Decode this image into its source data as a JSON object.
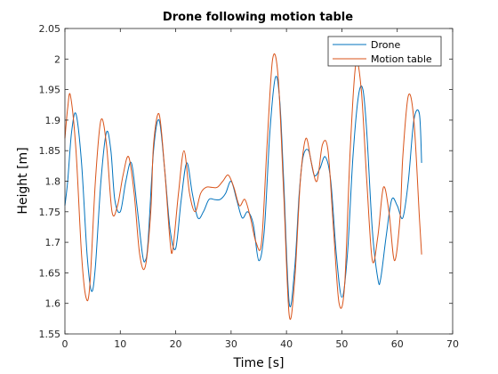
{
  "chart_data": {
    "type": "line",
    "title": "Drone following motion table",
    "xlabel": "Time [s]",
    "ylabel": "Height [m]",
    "xlim": [
      0,
      70
    ],
    "ylim": [
      1.55,
      2.05
    ],
    "xticks": [
      0,
      10,
      20,
      30,
      40,
      50,
      60,
      70
    ],
    "xtick_labels": [
      "0",
      "10",
      "20",
      "30",
      "40",
      "50",
      "60",
      "70"
    ],
    "yticks": [
      1.55,
      1.6,
      1.65,
      1.7,
      1.75,
      1.8,
      1.85,
      1.9,
      1.95,
      2.0,
      2.05
    ],
    "ytick_labels": [
      "1.55",
      "1.6",
      "1.65",
      "1.7",
      "1.75",
      "1.8",
      "1.85",
      "1.9",
      "1.95",
      "2",
      "2.05"
    ],
    "grid": false,
    "legend_location": "top-right",
    "series": [
      {
        "name": "Drone",
        "color": "#0072BD",
        "x": [
          0,
          0.5,
          1.2,
          2.0,
          3.0,
          4.0,
          4.8,
          5.5,
          6.5,
          7.5,
          8.3,
          9.0,
          10.0,
          11.0,
          12.0,
          13.0,
          14.0,
          14.5,
          15.0,
          16.0,
          17.0,
          18.0,
          19.0,
          20.0,
          21.0,
          22.0,
          23.0,
          24.0,
          25.0,
          26.0,
          27.0,
          28.0,
          29.0,
          30.0,
          31.0,
          32.0,
          33.0,
          34.0,
          35.0,
          36.0,
          37.0,
          38.0,
          38.8,
          39.5,
          40.5,
          41.5,
          42.3,
          43.0,
          44.0,
          45.0,
          46.0,
          47.0,
          48.0,
          49.0,
          50.0,
          51.0,
          52.0,
          53.0,
          53.8,
          54.5,
          55.5,
          56.5,
          57.0,
          58.0,
          59.0,
          60.0,
          61.0,
          62.0,
          63.0,
          64.0,
          64.4
        ],
        "y": [
          1.76,
          1.8,
          1.88,
          1.91,
          1.83,
          1.68,
          1.62,
          1.66,
          1.8,
          1.88,
          1.85,
          1.77,
          1.75,
          1.8,
          1.83,
          1.76,
          1.68,
          1.67,
          1.7,
          1.85,
          1.9,
          1.82,
          1.72,
          1.69,
          1.77,
          1.83,
          1.78,
          1.74,
          1.75,
          1.77,
          1.77,
          1.77,
          1.78,
          1.8,
          1.77,
          1.74,
          1.75,
          1.73,
          1.67,
          1.72,
          1.88,
          1.97,
          1.93,
          1.8,
          1.6,
          1.66,
          1.78,
          1.84,
          1.85,
          1.81,
          1.82,
          1.84,
          1.8,
          1.68,
          1.61,
          1.68,
          1.84,
          1.94,
          1.95,
          1.88,
          1.72,
          1.64,
          1.64,
          1.71,
          1.77,
          1.76,
          1.74,
          1.8,
          1.9,
          1.91,
          1.83
        ]
      },
      {
        "name": "Motion table",
        "color": "#D95319",
        "x": [
          0,
          0.5,
          1.0,
          2.0,
          3.0,
          3.8,
          4.5,
          5.5,
          6.5,
          7.5,
          8.5,
          9.5,
          10.5,
          11.5,
          12.5,
          13.5,
          14.5,
          15.5,
          16.0,
          17.0,
          18.0,
          19.0,
          19.5,
          20.5,
          21.5,
          22.5,
          23.5,
          24.5,
          25.5,
          26.5,
          27.5,
          28.5,
          29.5,
          30.5,
          31.5,
          32.5,
          33.5,
          34.5,
          35.5,
          36.5,
          37.5,
          38.5,
          39.5,
          40.5,
          41.5,
          42.5,
          43.5,
          44.5,
          45.5,
          46.5,
          47.5,
          48.5,
          49.5,
          50.5,
          51.5,
          52.5,
          53.5,
          54.5,
          55.5,
          56.5,
          57.5,
          58.5,
          59.5,
          60.5,
          61.0,
          62.0,
          63.0,
          64.0,
          64.4
        ],
        "y": [
          1.87,
          1.92,
          1.94,
          1.85,
          1.68,
          1.61,
          1.63,
          1.8,
          1.9,
          1.86,
          1.75,
          1.76,
          1.81,
          1.84,
          1.78,
          1.68,
          1.66,
          1.75,
          1.86,
          1.91,
          1.82,
          1.7,
          1.69,
          1.78,
          1.85,
          1.78,
          1.75,
          1.78,
          1.79,
          1.79,
          1.79,
          1.8,
          1.81,
          1.79,
          1.76,
          1.77,
          1.74,
          1.7,
          1.7,
          1.86,
          2.0,
          1.97,
          1.78,
          1.58,
          1.64,
          1.8,
          1.87,
          1.83,
          1.8,
          1.86,
          1.85,
          1.72,
          1.6,
          1.63,
          1.85,
          1.99,
          1.95,
          1.8,
          1.67,
          1.71,
          1.79,
          1.75,
          1.67,
          1.74,
          1.84,
          1.94,
          1.9,
          1.74,
          1.68
        ]
      }
    ]
  }
}
